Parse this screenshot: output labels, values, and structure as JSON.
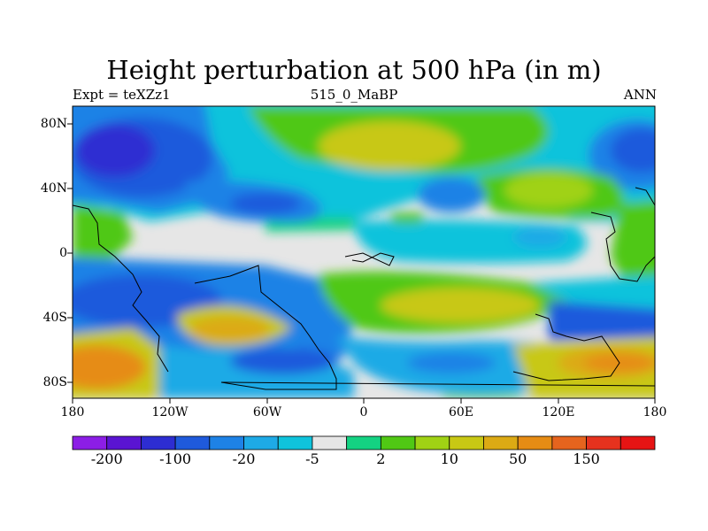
{
  "title": "Height perturbation at 500 hPa (in m)",
  "subtitle": {
    "left": "Expt = teXZz1",
    "center": "515_0_MaBP",
    "right": "ANN"
  },
  "lat_labels": [
    "80N",
    "40N",
    "0",
    "40S",
    "80S"
  ],
  "lon_labels": [
    "180",
    "120W",
    "60W",
    "0",
    "60E",
    "120E",
    "180"
  ],
  "colorbar": {
    "colors": [
      "#8c1ee6",
      "#5a14d2",
      "#2d2dd2",
      "#1f5adc",
      "#1e82e6",
      "#1eaae6",
      "#0fc3dc",
      "#e6e6e6",
      "#14d282",
      "#50c814",
      "#a0d214",
      "#c8c814",
      "#dcaa14",
      "#e68c14",
      "#e6641e",
      "#e6321e",
      "#e61414"
    ],
    "labels": [
      "-200",
      "-100",
      "-20",
      "-5",
      "2",
      "10",
      "50",
      "150"
    ]
  }
}
